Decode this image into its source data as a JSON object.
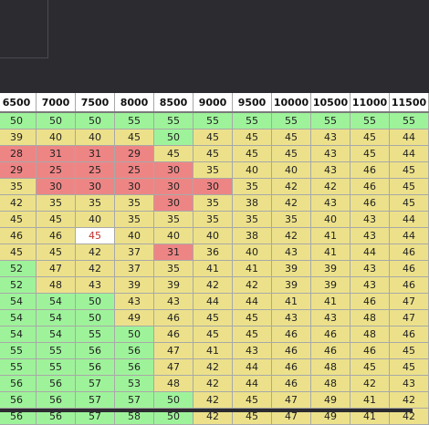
{
  "headers": [
    "6500",
    "7000",
    "7500",
    "8000",
    "8500",
    "9000",
    "9500",
    "10000",
    "10500",
    "11000",
    "11500"
  ],
  "colors": {
    "green": "#9ef39a",
    "yellow": "#ece18a",
    "red": "#ee8585",
    "white": "#ffffff"
  },
  "rows": [
    {
      "values": [
        50,
        50,
        50,
        55,
        55,
        55,
        55,
        55,
        55,
        55,
        55
      ],
      "classes": [
        "g",
        "g",
        "g",
        "g",
        "g",
        "g",
        "g",
        "g",
        "g",
        "g",
        "g"
      ]
    },
    {
      "values": [
        39,
        40,
        40,
        45,
        50,
        45,
        45,
        45,
        43,
        45,
        44
      ],
      "classes": [
        "y",
        "y",
        "y",
        "y",
        "g",
        "y",
        "y",
        "y",
        "y",
        "y",
        "y"
      ]
    },
    {
      "values": [
        28,
        31,
        31,
        29,
        45,
        45,
        45,
        45,
        43,
        45,
        44
      ],
      "classes": [
        "r",
        "r",
        "r",
        "r",
        "y",
        "y",
        "y",
        "y",
        "y",
        "y",
        "y"
      ]
    },
    {
      "values": [
        29,
        25,
        25,
        25,
        30,
        35,
        40,
        40,
        43,
        46,
        45
      ],
      "classes": [
        "r",
        "r",
        "r",
        "r",
        "r",
        "y",
        "y",
        "y",
        "y",
        "y",
        "y"
      ]
    },
    {
      "values": [
        35,
        30,
        30,
        30,
        30,
        30,
        35,
        42,
        42,
        46,
        45
      ],
      "classes": [
        "y",
        "r",
        "r",
        "r",
        "r",
        "r",
        "y",
        "y",
        "y",
        "y",
        "y"
      ]
    },
    {
      "values": [
        42,
        35,
        35,
        35,
        30,
        35,
        38,
        42,
        43,
        46,
        45
      ],
      "classes": [
        "y",
        "y",
        "y",
        "y",
        "r",
        "y",
        "y",
        "y",
        "y",
        "y",
        "y"
      ]
    },
    {
      "values": [
        45,
        45,
        40,
        35,
        35,
        35,
        35,
        35,
        40,
        43,
        44
      ],
      "classes": [
        "y",
        "y",
        "y",
        "y",
        "y",
        "y",
        "y",
        "y",
        "y",
        "y",
        "y"
      ]
    },
    {
      "values": [
        46,
        46,
        45,
        40,
        40,
        40,
        38,
        42,
        41,
        43,
        44
      ],
      "classes": [
        "y",
        "y",
        "w",
        "y",
        "y",
        "y",
        "y",
        "y",
        "y",
        "y",
        "y"
      ]
    },
    {
      "values": [
        45,
        45,
        42,
        37,
        31,
        36,
        40,
        43,
        41,
        44,
        46
      ],
      "classes": [
        "y",
        "y",
        "y",
        "y",
        "r",
        "y",
        "y",
        "y",
        "y",
        "y",
        "y"
      ]
    },
    {
      "values": [
        52,
        47,
        42,
        37,
        35,
        41,
        41,
        39,
        39,
        43,
        46
      ],
      "classes": [
        "g",
        "y",
        "y",
        "y",
        "y",
        "y",
        "y",
        "y",
        "y",
        "y",
        "y"
      ]
    },
    {
      "values": [
        52,
        48,
        43,
        39,
        39,
        42,
        42,
        39,
        39,
        43,
        46
      ],
      "classes": [
        "g",
        "y",
        "y",
        "y",
        "y",
        "y",
        "y",
        "y",
        "y",
        "y",
        "y"
      ]
    },
    {
      "values": [
        54,
        54,
        50,
        43,
        43,
        44,
        44,
        41,
        41,
        46,
        47
      ],
      "classes": [
        "g",
        "g",
        "g",
        "y",
        "y",
        "y",
        "y",
        "y",
        "y",
        "y",
        "y"
      ]
    },
    {
      "values": [
        54,
        54,
        50,
        49,
        46,
        45,
        45,
        43,
        43,
        48,
        47
      ],
      "classes": [
        "g",
        "g",
        "g",
        "y",
        "y",
        "y",
        "y",
        "y",
        "y",
        "y",
        "y"
      ]
    },
    {
      "values": [
        54,
        54,
        55,
        50,
        46,
        45,
        45,
        46,
        46,
        48,
        46
      ],
      "classes": [
        "g",
        "g",
        "g",
        "g",
        "y",
        "y",
        "y",
        "y",
        "y",
        "y",
        "y"
      ]
    },
    {
      "values": [
        55,
        55,
        56,
        56,
        47,
        41,
        43,
        46,
        46,
        46,
        45
      ],
      "classes": [
        "g",
        "g",
        "g",
        "g",
        "y",
        "y",
        "y",
        "y",
        "y",
        "y",
        "y"
      ]
    },
    {
      "values": [
        55,
        55,
        56,
        56,
        47,
        42,
        44,
        46,
        48,
        45,
        45
      ],
      "classes": [
        "g",
        "g",
        "g",
        "g",
        "y",
        "y",
        "y",
        "y",
        "y",
        "y",
        "y"
      ]
    },
    {
      "values": [
        56,
        56,
        57,
        53,
        48,
        42,
        44,
        46,
        48,
        42,
        43
      ],
      "classes": [
        "g",
        "g",
        "g",
        "g",
        "y",
        "y",
        "y",
        "y",
        "y",
        "y",
        "y"
      ]
    },
    {
      "values": [
        56,
        56,
        57,
        57,
        50,
        42,
        45,
        47,
        49,
        41,
        42
      ],
      "classes": [
        "g",
        "g",
        "g",
        "g",
        "g",
        "y",
        "y",
        "y",
        "y",
        "y",
        "y"
      ]
    },
    {
      "values": [
        56,
        56,
        57,
        58,
        50,
        42,
        45,
        47,
        49,
        41,
        42
      ],
      "classes": [
        "g",
        "g",
        "g",
        "g",
        "g",
        "y",
        "y",
        "y",
        "y",
        "y",
        "y"
      ]
    }
  ]
}
